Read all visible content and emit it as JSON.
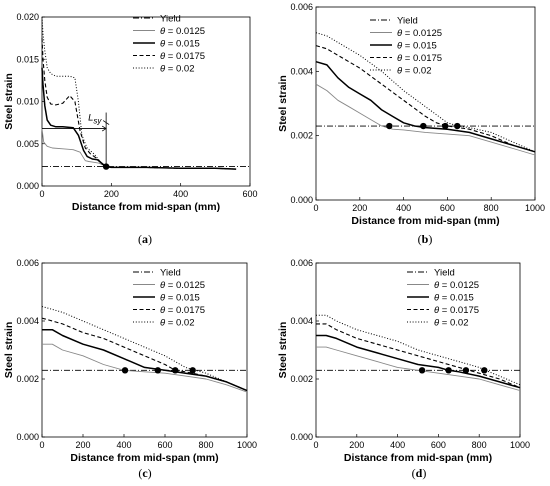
{
  "chart_data": [
    {
      "id": "a",
      "type": "line",
      "panel_label": "a",
      "xlabel": "Distance from mid-span (mm)",
      "ylabel": "Steel strain",
      "xlim": [
        0,
        600
      ],
      "ylim": [
        0,
        0.02
      ],
      "xticks": [
        0,
        200,
        400,
        600
      ],
      "yticks": [
        0.0,
        0.005,
        0.01,
        0.015,
        0.02
      ],
      "ytick_labels": [
        "0.000",
        "0.005",
        "0.010",
        "0.015",
        "0.020"
      ],
      "yield": 0.0023,
      "annotation": {
        "label": "L",
        "sub": "sy",
        "x1": 0,
        "x2": 185,
        "y": 0.0068
      },
      "marker_points": [
        [
          185,
          0.0023
        ]
      ],
      "legend": [
        "Yield",
        "= 0.0125",
        "= 0.015",
        "= 0.0175",
        "= 0.02"
      ],
      "series": [
        {
          "name": "0.0125",
          "style": "gray",
          "x": [
            0,
            5,
            15,
            30,
            60,
            90,
            110,
            125,
            135,
            150,
            165,
            180,
            200,
            300,
            400,
            500,
            560
          ],
          "y": [
            0.0068,
            0.0052,
            0.0047,
            0.0045,
            0.0044,
            0.0043,
            0.004,
            0.003,
            0.0029,
            0.0028,
            0.0027,
            0.0024,
            0.0022,
            0.0022,
            0.0021,
            0.0021,
            0.002
          ]
        },
        {
          "name": "0.015",
          "style": "solid",
          "x": [
            0,
            3,
            8,
            15,
            25,
            40,
            60,
            90,
            105,
            120,
            130,
            145,
            160,
            175,
            185,
            200,
            300,
            400,
            500,
            560
          ],
          "y": [
            0.014,
            0.012,
            0.0095,
            0.0078,
            0.0072,
            0.007,
            0.007,
            0.0069,
            0.006,
            0.0042,
            0.0035,
            0.0032,
            0.0031,
            0.0026,
            0.0023,
            0.0022,
            0.0022,
            0.0021,
            0.0021,
            0.002
          ]
        },
        {
          "name": "0.0175",
          "style": "dashed",
          "x": [
            0,
            3,
            8,
            15,
            25,
            40,
            60,
            80,
            95,
            110,
            125,
            140,
            160,
            180,
            200,
            300,
            400,
            500,
            560
          ],
          "y": [
            0.0175,
            0.015,
            0.0125,
            0.0105,
            0.0097,
            0.0096,
            0.0098,
            0.0107,
            0.01,
            0.0065,
            0.0045,
            0.0038,
            0.0032,
            0.0024,
            0.0022,
            0.0022,
            0.0021,
            0.0021,
            0.002
          ]
        },
        {
          "name": "0.02",
          "style": "dotted",
          "x": [
            0,
            3,
            8,
            15,
            25,
            40,
            60,
            80,
            95,
            105,
            115,
            130,
            150,
            175,
            200,
            300,
            400,
            500,
            560
          ],
          "y": [
            0.02,
            0.018,
            0.016,
            0.014,
            0.0133,
            0.013,
            0.013,
            0.013,
            0.0128,
            0.01,
            0.006,
            0.0045,
            0.0038,
            0.0025,
            0.0022,
            0.0022,
            0.0021,
            0.0021,
            0.002
          ]
        }
      ]
    },
    {
      "id": "b",
      "type": "line",
      "panel_label": "b",
      "xlabel": "Distance from mid-span (mm)",
      "ylabel": "Steel strain",
      "xlim": [
        0,
        1000
      ],
      "ylim": [
        0,
        0.006
      ],
      "xticks": [
        0,
        200,
        400,
        600,
        800,
        1000
      ],
      "yticks": [
        0.0,
        0.002,
        0.004,
        0.006
      ],
      "ytick_labels": [
        "0.000",
        "0.002",
        "0.004",
        "0.006"
      ],
      "yield": 0.0023,
      "marker_points": [
        [
          335,
          0.0023
        ],
        [
          490,
          0.0023
        ],
        [
          590,
          0.0023
        ],
        [
          645,
          0.0023
        ]
      ],
      "legend": [
        "Yield",
        "= 0.0125",
        "= 0.015",
        "= 0.0175",
        "= 0.02"
      ],
      "series": [
        {
          "name": "0.0125",
          "style": "gray",
          "x": [
            0,
            50,
            100,
            150,
            200,
            250,
            300,
            350,
            400,
            500,
            600,
            700,
            800,
            900,
            1000
          ],
          "y": [
            0.0036,
            0.0034,
            0.0031,
            0.0029,
            0.0027,
            0.0025,
            0.0023,
            0.0022,
            0.00218,
            0.0021,
            0.00205,
            0.002,
            0.0018,
            0.0016,
            0.0014
          ]
        },
        {
          "name": "0.015",
          "style": "solid",
          "x": [
            0,
            50,
            100,
            150,
            200,
            250,
            300,
            350,
            400,
            450,
            500,
            600,
            700,
            800,
            900,
            1000
          ],
          "y": [
            0.0043,
            0.0042,
            0.0038,
            0.0035,
            0.0033,
            0.0031,
            0.0028,
            0.0026,
            0.0024,
            0.0023,
            0.00225,
            0.0022,
            0.0021,
            0.0019,
            0.0017,
            0.0015
          ]
        },
        {
          "name": "0.0175",
          "style": "dashed",
          "x": [
            0,
            50,
            100,
            200,
            300,
            400,
            500,
            550,
            600,
            700,
            800,
            900,
            1000
          ],
          "y": [
            0.0048,
            0.0047,
            0.0045,
            0.0041,
            0.0036,
            0.0031,
            0.0026,
            0.0024,
            0.0023,
            0.0022,
            0.002,
            0.0017,
            0.0015
          ]
        },
        {
          "name": "0.02",
          "style": "dotted",
          "x": [
            0,
            50,
            100,
            200,
            300,
            400,
            500,
            600,
            650,
            700,
            800,
            900,
            1000
          ],
          "y": [
            0.0052,
            0.0051,
            0.0049,
            0.0045,
            0.004,
            0.0034,
            0.0029,
            0.0024,
            0.0023,
            0.00225,
            0.0021,
            0.0018,
            0.0015
          ]
        }
      ]
    },
    {
      "id": "c",
      "type": "line",
      "panel_label": "c",
      "xlabel": "Distance from mid-span (mm)",
      "ylabel": "Steel strain",
      "xlim": [
        0,
        1000
      ],
      "ylim": [
        0,
        0.006
      ],
      "xticks": [
        0,
        200,
        400,
        600,
        800,
        1000
      ],
      "yticks": [
        0.0,
        0.002,
        0.004,
        0.006
      ],
      "ytick_labels": [
        "0.000",
        "0.002",
        "0.004",
        "0.006"
      ],
      "yield": 0.0023,
      "marker_points": [
        [
          405,
          0.0023
        ],
        [
          565,
          0.0023
        ],
        [
          650,
          0.0023
        ],
        [
          735,
          0.0023
        ]
      ],
      "legend": [
        "Yield",
        "= 0.0125",
        "= 0.015",
        "= 0.0175",
        "= 0.02"
      ],
      "series": [
        {
          "name": "0.0125",
          "style": "gray",
          "x": [
            0,
            50,
            100,
            200,
            300,
            400,
            500,
            600,
            700,
            800,
            900,
            1000
          ],
          "y": [
            0.0032,
            0.0032,
            0.003,
            0.0028,
            0.0025,
            0.0023,
            0.00225,
            0.0022,
            0.0021,
            0.002,
            0.0018,
            0.00155
          ]
        },
        {
          "name": "0.015",
          "style": "solid",
          "x": [
            0,
            50,
            100,
            200,
            300,
            400,
            500,
            600,
            700,
            800,
            900,
            1000
          ],
          "y": [
            0.0037,
            0.0037,
            0.0035,
            0.0032,
            0.003,
            0.0027,
            0.0024,
            0.0023,
            0.0022,
            0.0021,
            0.0019,
            0.0016
          ]
        },
        {
          "name": "0.0175",
          "style": "dashed",
          "x": [
            0,
            50,
            100,
            200,
            300,
            400,
            500,
            600,
            650,
            700,
            800,
            900,
            1000
          ],
          "y": [
            0.0041,
            0.004,
            0.0039,
            0.0036,
            0.0034,
            0.0031,
            0.0028,
            0.0025,
            0.0023,
            0.00225,
            0.0021,
            0.0019,
            0.0016
          ]
        },
        {
          "name": "0.02",
          "style": "dotted",
          "x": [
            0,
            50,
            100,
            200,
            300,
            400,
            500,
            600,
            700,
            750,
            800,
            900,
            1000
          ],
          "y": [
            0.0045,
            0.0044,
            0.0043,
            0.004,
            0.0037,
            0.0034,
            0.0031,
            0.0028,
            0.0024,
            0.0023,
            0.0022,
            0.0019,
            0.0016
          ]
        }
      ]
    },
    {
      "id": "d",
      "type": "line",
      "panel_label": "d",
      "xlabel": "Distance from mid-span (mm)",
      "ylabel": "Steel strain",
      "xlim": [
        0,
        1000
      ],
      "ylim": [
        0,
        0.006
      ],
      "xticks": [
        0,
        200,
        400,
        600,
        800,
        1000
      ],
      "yticks": [
        0.0,
        0.002,
        0.004,
        0.006
      ],
      "ytick_labels": [
        "0.000",
        "0.002",
        "0.004",
        "0.006"
      ],
      "yield": 0.0023,
      "marker_points": [
        [
          520,
          0.0023
        ],
        [
          650,
          0.0023
        ],
        [
          735,
          0.0023
        ],
        [
          825,
          0.0023
        ]
      ],
      "legend": [
        "Yield",
        "= 0.0125",
        "= 0.015",
        "= 0.0175",
        "= 0.02"
      ],
      "series": [
        {
          "name": "0.0125",
          "style": "gray",
          "x": [
            0,
            50,
            100,
            200,
            300,
            400,
            500,
            600,
            700,
            800,
            900,
            1000
          ],
          "y": [
            0.0031,
            0.0031,
            0.003,
            0.0028,
            0.0026,
            0.0024,
            0.0023,
            0.0022,
            0.0021,
            0.002,
            0.0018,
            0.0016
          ]
        },
        {
          "name": "0.015",
          "style": "solid",
          "x": [
            0,
            50,
            100,
            200,
            300,
            400,
            500,
            600,
            650,
            700,
            800,
            900,
            1000
          ],
          "y": [
            0.0035,
            0.0035,
            0.0034,
            0.0031,
            0.0029,
            0.0027,
            0.0025,
            0.0024,
            0.0023,
            0.00225,
            0.0021,
            0.0019,
            0.0017
          ]
        },
        {
          "name": "0.0175",
          "style": "dashed",
          "x": [
            0,
            50,
            100,
            200,
            300,
            400,
            500,
            600,
            700,
            750,
            800,
            900,
            1000
          ],
          "y": [
            0.0039,
            0.0039,
            0.0037,
            0.0034,
            0.0032,
            0.003,
            0.0028,
            0.0026,
            0.0024,
            0.0023,
            0.0022,
            0.002,
            0.0017
          ]
        },
        {
          "name": "0.02",
          "style": "dotted",
          "x": [
            0,
            50,
            100,
            200,
            300,
            400,
            500,
            600,
            700,
            800,
            830,
            900,
            1000
          ],
          "y": [
            0.0042,
            0.0042,
            0.004,
            0.0037,
            0.0035,
            0.0033,
            0.003,
            0.0028,
            0.0026,
            0.0024,
            0.0023,
            0.0021,
            0.0018
          ]
        }
      ]
    }
  ]
}
